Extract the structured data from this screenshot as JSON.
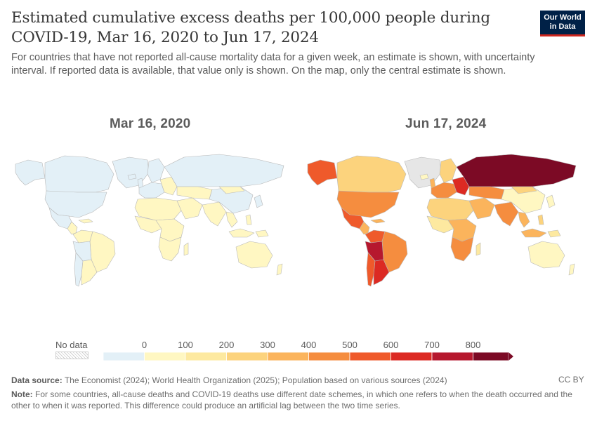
{
  "header": {
    "title": "Estimated cumulative excess deaths per 100,000 people during COVID-19, Mar 16, 2020 to Jun 17, 2024",
    "subtitle": "For countries that have not reported all-cause mortality data for a given week, an estimate is shown, with uncertainty interval. If reported data is available, that value only is shown. On the map, only the central estimate is shown.",
    "logo_line1": "Our World",
    "logo_line2": "in Data"
  },
  "maps": [
    {
      "label": "Mar 16, 2020"
    },
    {
      "label": "Jun 17, 2024"
    }
  ],
  "legend": {
    "nodata_label": "No data",
    "ticks": [
      "0",
      "100",
      "200",
      "300",
      "400",
      "500",
      "600",
      "700",
      "800"
    ],
    "colors": [
      "#e3f0f7",
      "#fff7c2",
      "#fde9a0",
      "#fcd37d",
      "#fbb45c",
      "#f58d3f",
      "#ef5a2b",
      "#dc2a23",
      "#b6182e",
      "#7c0a25"
    ],
    "nodata_color": "#e6e6e6"
  },
  "footer": {
    "source_label": "Data source:",
    "source_text": "The Economist (2024); World Health Organization (2025); Population based on various sources (2024)",
    "license": "CC BY",
    "note_label": "Note:",
    "note_text": "For some countries, all-cause deaths and COVID-19 deaths use different date schemes, in which one refers to when the death occurred and the other to when it was reported. This difference could produce an artificial lag between the two time series."
  }
}
